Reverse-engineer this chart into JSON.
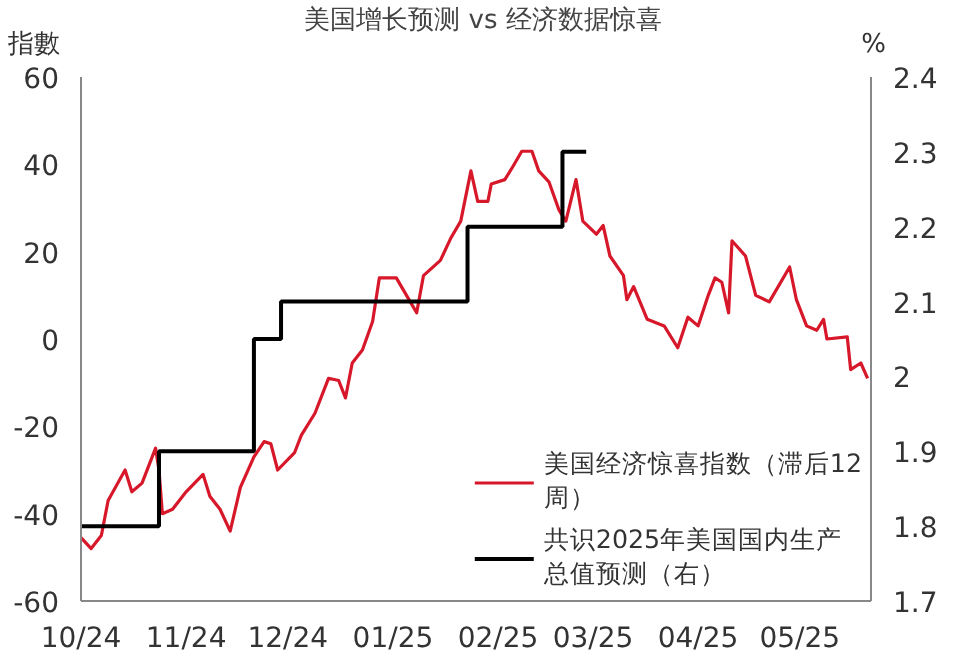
{
  "chart_data": {
    "type": "line",
    "title": "美国增长预测 vs 经济数据惊喜",
    "ylabel": "指數",
    "y2label": "%",
    "xlim": [
      "2024-10-01",
      "2025-05-22"
    ],
    "xticks": [
      {
        "value": "2024-10-01",
        "label": "10/24"
      },
      {
        "value": "2024-11-01",
        "label": "11/24"
      },
      {
        "value": "2024-12-01",
        "label": "12/24"
      },
      {
        "value": "2025-01-01",
        "label": "01/25"
      },
      {
        "value": "2025-02-01",
        "label": "02/25"
      },
      {
        "value": "2025-03-01",
        "label": "03/25"
      },
      {
        "value": "2025-04-01",
        "label": "04/25"
      },
      {
        "value": "2025-05-01",
        "label": "05/25"
      }
    ],
    "ylim": [
      -60,
      60
    ],
    "yticks": [
      -60,
      -40,
      -20,
      0,
      20,
      40,
      60
    ],
    "y2lim": [
      1.7,
      2.4
    ],
    "y2ticks": [
      1.7,
      1.8,
      1.9,
      2,
      2.1,
      2.2,
      2.3,
      2.4
    ],
    "grid": false,
    "legend": "bottom right",
    "series": [
      {
        "name": "美国经济惊喜指数（滞后12周）",
        "color": "#d7182a",
        "x": [
          "2024-10-01",
          "2024-10-04",
          "2024-10-07",
          "2024-10-09",
          "2024-10-14",
          "2024-10-16",
          "2024-10-19",
          "2024-10-23",
          "2024-10-24",
          "2024-10-25",
          "2024-10-28",
          "2024-11-01",
          "2024-11-06",
          "2024-11-08",
          "2024-11-11",
          "2024-11-14",
          "2024-11-17",
          "2024-11-21",
          "2024-11-24",
          "2024-11-26",
          "2024-11-28",
          "2024-12-03",
          "2024-12-05",
          "2024-12-09",
          "2024-12-13",
          "2024-12-16",
          "2024-12-18",
          "2024-12-20",
          "2024-12-23",
          "2024-12-26",
          "2024-12-28",
          "2025-01-02",
          "2025-01-05",
          "2025-01-08",
          "2025-01-10",
          "2025-01-15",
          "2025-01-18",
          "2025-01-21",
          "2025-01-24",
          "2025-01-26",
          "2025-01-29",
          "2025-01-30",
          "2025-02-03",
          "2025-02-05",
          "2025-02-08",
          "2025-02-11",
          "2025-02-13",
          "2025-02-16",
          "2025-02-19",
          "2025-02-21",
          "2025-02-24",
          "2025-02-26",
          "2025-03-02",
          "2025-03-04",
          "2025-03-06",
          "2025-03-10",
          "2025-03-11",
          "2025-03-13",
          "2025-03-17",
          "2025-03-22",
          "2025-03-26",
          "2025-03-29",
          "2025-04-01",
          "2025-04-04",
          "2025-04-06",
          "2025-04-08",
          "2025-04-10",
          "2025-04-11",
          "2025-04-15",
          "2025-04-18",
          "2025-04-22",
          "2025-04-28",
          "2025-04-30",
          "2025-05-03",
          "2025-05-06",
          "2025-05-08",
          "2025-05-09",
          "2025-05-15",
          "2025-05-16",
          "2025-05-19",
          "2025-05-21"
        ],
        "values": [
          -45.5,
          -48,
          -45,
          -37,
          -30,
          -35,
          -33,
          -25,
          -30,
          -40,
          -39,
          -35,
          -31,
          -36,
          -39,
          -44,
          -34,
          -27,
          -23.5,
          -24,
          -30,
          -26,
          -22,
          -17,
          -9,
          -9.5,
          -13.5,
          -5.5,
          -2.5,
          4,
          14,
          14,
          10,
          6,
          14.5,
          18,
          23,
          27,
          38.5,
          31.5,
          31.5,
          35.5,
          36.5,
          39,
          43,
          43,
          38.5,
          36,
          29.5,
          27,
          36.5,
          27,
          24,
          26,
          19,
          14.5,
          9,
          12,
          4.5,
          3,
          -2,
          5,
          3,
          10,
          14,
          13,
          6,
          22.5,
          19,
          10,
          8.5,
          16.5,
          9,
          3,
          2,
          4.5,
          0,
          0.5,
          -7,
          -5.5,
          -9
        ]
      },
      {
        "name": "共识2025年美国国内生产总值预测（右）",
        "color": "#000000",
        "type": "step",
        "axis": "y2",
        "x": [
          "2024-10-01",
          "2024-10-24",
          "2024-11-21",
          "2024-11-29",
          "2025-01-23",
          "2025-02-20",
          "2025-02-27"
        ],
        "values": [
          1.8,
          1.9,
          2.05,
          2.1,
          2.2,
          2.3,
          2.3
        ]
      }
    ]
  }
}
